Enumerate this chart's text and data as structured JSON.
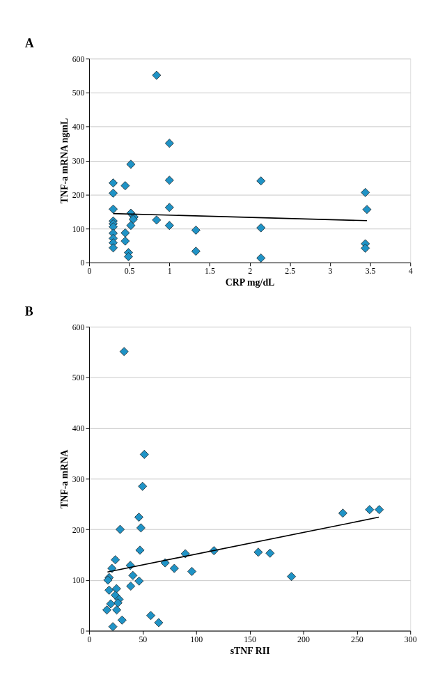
{
  "chart_data": [
    {
      "type": "scatter",
      "title": "A",
      "xlabel": "CRP mg/dL",
      "ylabel": "TNF-a mRNA ngmL",
      "xlim": [
        0,
        4
      ],
      "xticks": [
        0,
        0.5,
        1,
        1.5,
        2,
        2.5,
        3,
        3.5,
        4
      ],
      "ylim": [
        0,
        600
      ],
      "yticks": [
        0,
        100,
        200,
        300,
        400,
        500,
        600
      ],
      "grid": "y",
      "marker": "diamond",
      "series": [
        {
          "color": "#1f93c6",
          "x": [
            0.84,
            1.0,
            0.52,
            1.0,
            0.3,
            0.45,
            0.3,
            1.0,
            0.3,
            0.52,
            0.56,
            0.55,
            0.84,
            0.3,
            0.3,
            0.3,
            0.52,
            1.0,
            0.45,
            0.3,
            0.3,
            0.3,
            0.3,
            0.45,
            1.33,
            0.49,
            0.49,
            1.33,
            2.14,
            2.14,
            2.14,
            3.44,
            3.46,
            3.44,
            3.44
          ],
          "values": [
            551,
            351,
            289,
            242,
            234,
            226,
            204,
            162,
            157,
            145,
            134,
            127,
            125,
            122,
            114,
            105,
            109,
            109,
            87,
            86,
            71,
            58,
            43,
            63,
            95,
            29,
            17,
            33,
            240,
            102,
            13,
            206,
            156,
            55,
            42
          ]
        },
        {
          "type": "line",
          "marker": "none",
          "color": "#000000",
          "x": [
            0.3,
            3.46
          ],
          "values": [
            144,
            123
          ]
        }
      ]
    },
    {
      "type": "scatter",
      "title": "B",
      "xlabel": "sTNF RII",
      "ylabel": "TNF-a mRNA",
      "xlim": [
        0,
        300
      ],
      "xticks": [
        0,
        50,
        100,
        150,
        200,
        250,
        300
      ],
      "ylim": [
        0,
        600
      ],
      "yticks": [
        0,
        100,
        200,
        300,
        400,
        500,
        600
      ],
      "grid": "y",
      "marker": "diamond",
      "series": [
        {
          "color": "#1f93c6",
          "x": [
            32.7,
            51.6,
            49.9,
            46.5,
            48.4,
            29,
            47.5,
            24.5,
            38.5,
            21.3,
            18.7,
            17.6,
            40.9,
            46.7,
            38.9,
            18.7,
            25.6,
            24.5,
            28,
            26.9,
            20.2,
            16.6,
            25.8,
            30.8,
            22.2,
            57.6,
            65,
            71,
            79.6,
            89.9,
            96,
            116.6,
            158,
            169,
            189,
            237,
            262,
            271
          ],
          "values": [
            551,
            348,
            285,
            224,
            203,
            200,
            159,
            140,
            129,
            123,
            105,
            100,
            109,
            98,
            88,
            80,
            83,
            70,
            62,
            55,
            53,
            41,
            41,
            21,
            8,
            30,
            16,
            134,
            123,
            152,
            117,
            158,
            155,
            153,
            107,
            232,
            239,
            239
          ]
        },
        {
          "type": "line",
          "marker": "none",
          "color": "#000000",
          "x": [
            17.2,
            270.6
          ],
          "values": [
            116,
            224
          ]
        }
      ]
    }
  ]
}
